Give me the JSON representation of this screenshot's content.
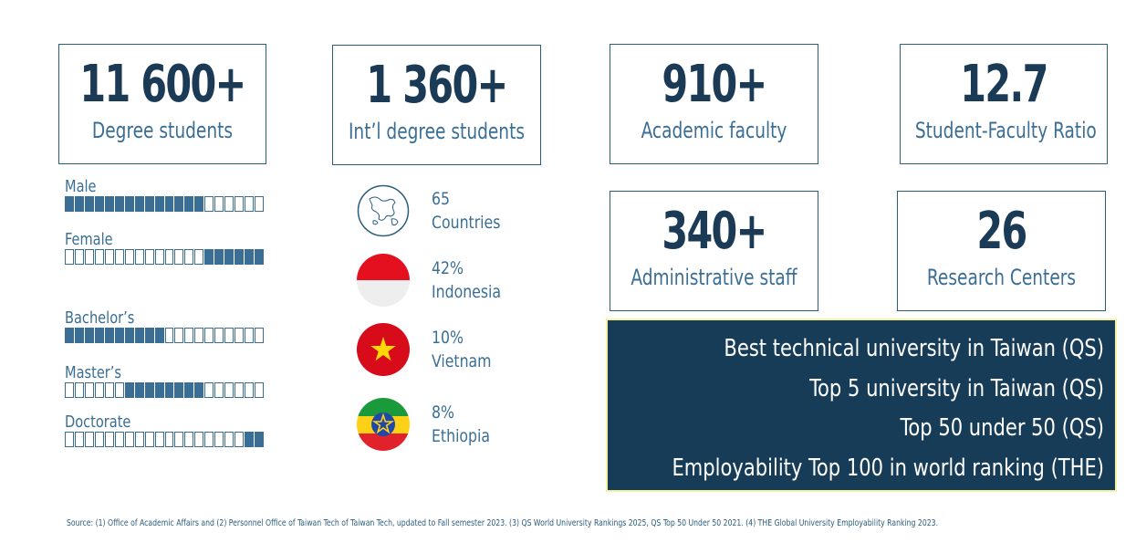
{
  "stats": [
    {
      "value": "11 600+",
      "label": "Degree students"
    },
    {
      "value": "1 360+",
      "label": "Int’l degree students"
    },
    {
      "value": "910+",
      "label": "Academic faculty"
    },
    {
      "value": "12.7",
      "label": "Student-Faculty Ratio"
    },
    {
      "value": "340+",
      "label": "Administrative staff"
    },
    {
      "value": "26",
      "label": "Research Centers"
    }
  ],
  "bars": [
    {
      "label": "Male",
      "share": 0.7,
      "fill_from": "left"
    },
    {
      "label": "Female",
      "share": 0.3,
      "fill_from": "right"
    },
    {
      "label": "Bachelor’s",
      "share": 0.5,
      "fill_from": "left"
    },
    {
      "label": "Master’s",
      "share": 0.4,
      "fill_from": "middle"
    },
    {
      "label": "Doctorate",
      "share": 0.1,
      "fill_from": "right"
    }
  ],
  "countries": [
    {
      "value": "65",
      "label": "Countries",
      "icon": "globe-icon"
    },
    {
      "value": "42%",
      "label": "Indonesia",
      "icon": "indonesia-flag-icon"
    },
    {
      "value": "10%",
      "label": "Vietnam",
      "icon": "vietnam-flag-icon"
    },
    {
      "value": "8%",
      "label": "Ethiopia",
      "icon": "ethiopia-flag-icon"
    }
  ],
  "rankings": [
    "Best technical university in Taiwan (QS)",
    "Top 5 university in Taiwan (QS)",
    "Top 50 under 50 (QS)",
    "Employability Top 100 in world ranking (THE)"
  ],
  "source": "Source: (1) Office of Academic Affairs and (2) Personnel Office of Taiwan Tech of Taiwan Tech, updated to Fall semester 2023. (3) QS World University Rankings 2025, QS Top 50 Under 50 2021. (4) THE Global University Employability Ranking 2023.",
  "colors": {
    "primary": "#1b3a56",
    "accent": "#3a6e94",
    "ranking_bg": "#163c58",
    "ranking_border": "#f3f3a0"
  }
}
